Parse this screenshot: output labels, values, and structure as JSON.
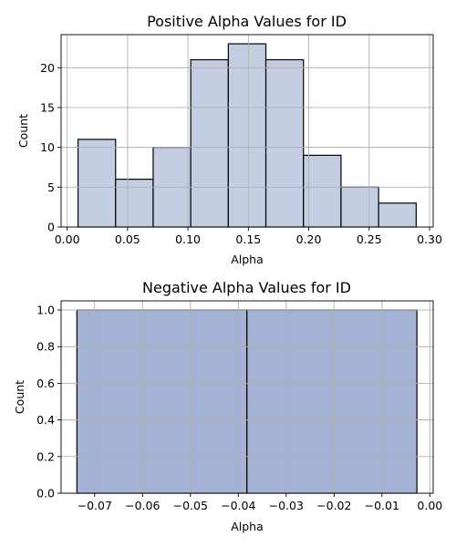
{
  "chart_data": [
    {
      "type": "bar",
      "title": "Positive Alpha Values for ID",
      "xlabel": "Alpha",
      "ylabel": "Count",
      "bin_edges": [
        0.009,
        0.0401,
        0.0712,
        0.1023,
        0.1334,
        0.1645,
        0.1956,
        0.2267,
        0.2578,
        0.2889
      ],
      "values": [
        11,
        6,
        10,
        21,
        23,
        21,
        9,
        5,
        3
      ],
      "xlim": [
        -0.005,
        0.303
      ],
      "ylim": [
        0,
        24.15
      ],
      "x_ticks": [
        0.0,
        0.05,
        0.1,
        0.15,
        0.2,
        0.25,
        0.3
      ],
      "x_tick_labels": [
        "0.00",
        "0.05",
        "0.10",
        "0.15",
        "0.20",
        "0.25",
        "0.30"
      ],
      "y_ticks": [
        0,
        5,
        10,
        15,
        20
      ],
      "y_tick_labels": [
        "0",
        "5",
        "10",
        "15",
        "20"
      ],
      "grid": true,
      "bar_color": "#c4cee2",
      "edge_color": "#000000"
    },
    {
      "type": "bar",
      "title": "Negative Alpha Values for ID",
      "xlabel": "Alpha",
      "ylabel": "Count",
      "bin_edges": [
        -0.0737,
        -0.0382,
        -0.0027
      ],
      "values": [
        1,
        1
      ],
      "xlim": [
        -0.077,
        0.0007
      ],
      "ylim": [
        0,
        1.05
      ],
      "x_ticks": [
        -0.07,
        -0.06,
        -0.05,
        -0.04,
        -0.03,
        -0.02,
        -0.01,
        0.0
      ],
      "x_tick_labels": [
        "−0.07",
        "−0.06",
        "−0.05",
        "−0.04",
        "−0.03",
        "−0.02",
        "−0.01",
        "0.00"
      ],
      "y_ticks": [
        0.0,
        0.2,
        0.4,
        0.6,
        0.8,
        1.0
      ],
      "y_tick_labels": [
        "0.0",
        "0.2",
        "0.4",
        "0.6",
        "0.8",
        "1.0"
      ],
      "grid": true,
      "bar_color": "#a4b2d6",
      "edge_color": "#000000"
    }
  ]
}
